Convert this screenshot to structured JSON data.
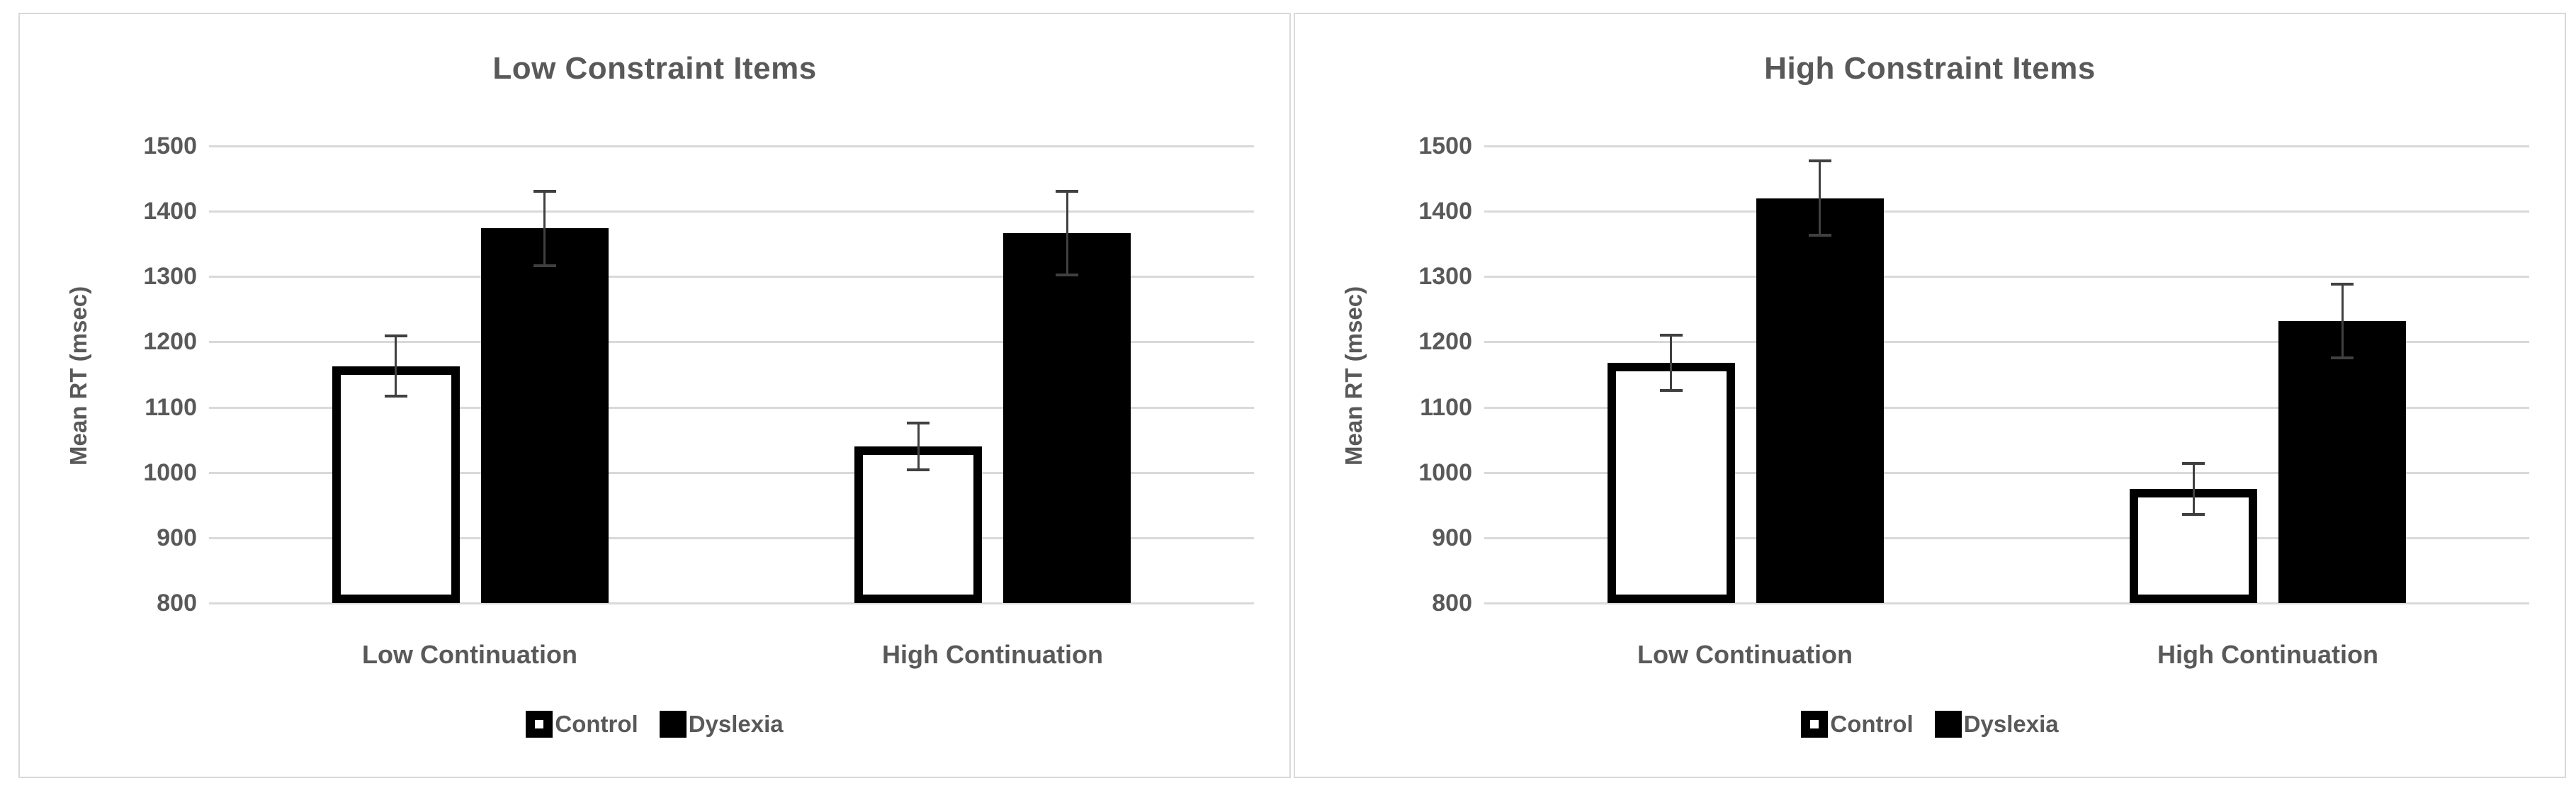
{
  "chart_data": [
    {
      "type": "bar",
      "title": "Low Constraint Items",
      "ylabel": "Mean RT (msec)",
      "xlabel": "",
      "categories": [
        "Low Continuation",
        "High Continuation"
      ],
      "series": [
        {
          "name": "Control",
          "values": [
            1163,
            1040
          ],
          "errors": [
            46,
            36
          ]
        },
        {
          "name": "Dyslexia",
          "values": [
            1374,
            1367
          ],
          "errors": [
            57,
            64
          ]
        }
      ],
      "ylim": [
        800,
        1500
      ],
      "ytick_step": 100,
      "yticks": [
        800,
        900,
        1000,
        1100,
        1200,
        1300,
        1400,
        1500
      ],
      "grid": true,
      "legend_position": "bottom"
    },
    {
      "type": "bar",
      "title": "High Constraint Items",
      "ylabel": "Mean RT (msec)",
      "xlabel": "",
      "categories": [
        "Low Continuation",
        "High Continuation"
      ],
      "series": [
        {
          "name": "Control",
          "values": [
            1168,
            975
          ],
          "errors": [
            42,
            39
          ]
        },
        {
          "name": "Dyslexia",
          "values": [
            1420,
            1232
          ],
          "errors": [
            57,
            56
          ]
        }
      ],
      "ylim": [
        800,
        1500
      ],
      "ytick_step": 100,
      "yticks": [
        800,
        900,
        1000,
        1100,
        1200,
        1300,
        1400,
        1500
      ],
      "grid": true,
      "legend_position": "bottom"
    }
  ],
  "colors": {
    "background": "#ffffff",
    "panel_border": "#d9d9d9",
    "gridline": "#d9d9d9",
    "text": "#595959",
    "error_bar": "#404040",
    "bar_control_fill": "#ffffff",
    "bar_dyslexia_fill": "#000000",
    "bar_border": "#000000"
  }
}
